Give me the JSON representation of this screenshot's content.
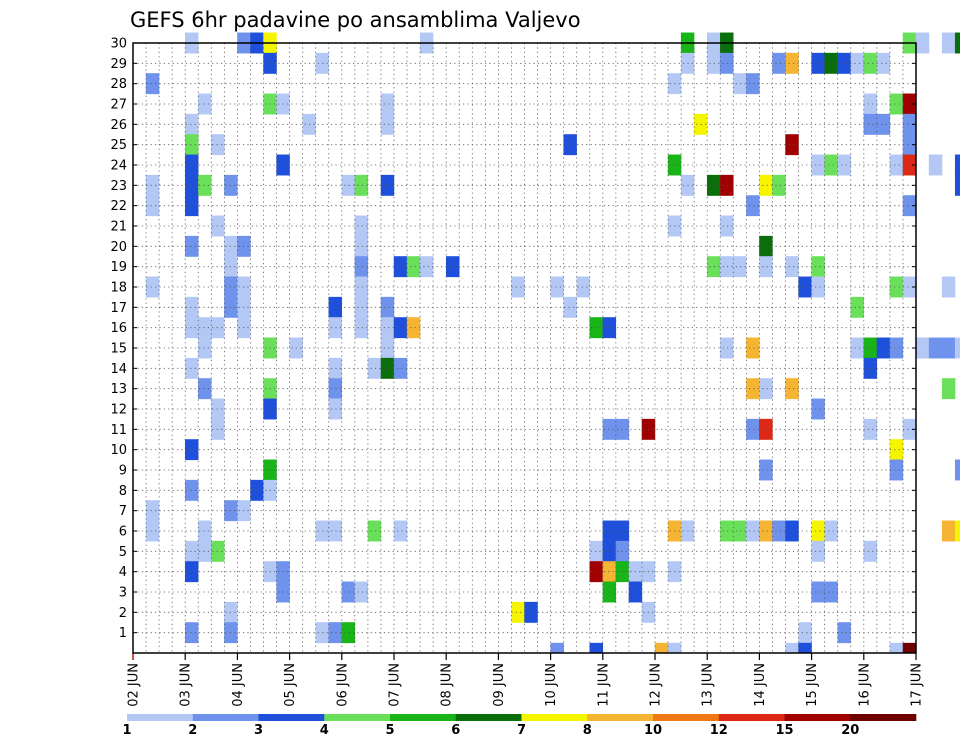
{
  "chart_data": {
    "type": "heatmap",
    "title": "GEFS 6hr padavine po ansamblima Valjevo",
    "xlabel": "",
    "ylabel": "",
    "x_tick_labels": [
      "02 JUN",
      "03 JUN",
      "04 JUN",
      "05 JUN",
      "06 JUN",
      "07 JUN",
      "08 JUN",
      "09 JUN",
      "10 JUN",
      "11 JUN",
      "12 JUN",
      "13 JUN",
      "14 JUN",
      "15 JUN",
      "16 JUN",
      "17 JUN"
    ],
    "y_tick_labels": [
      "1",
      "2",
      "3",
      "4",
      "5",
      "6",
      "7",
      "8",
      "9",
      "10",
      "11",
      "12",
      "13",
      "14",
      "15",
      "16",
      "17",
      "18",
      "19",
      "20",
      "21",
      "22",
      "23",
      "24",
      "25",
      "26",
      "27",
      "28",
      "29",
      "30"
    ],
    "ylim": [
      0,
      30
    ],
    "grid": true,
    "colorbar": {
      "labels": [
        "1",
        "2",
        "3",
        "4",
        "5",
        "6",
        "7",
        "8",
        "10",
        "12",
        "15",
        "20"
      ],
      "colors": [
        "#b4c8f5",
        "#6f93ec",
        "#1e50dc",
        "#6ae05a",
        "#18b418",
        "#0a6e0a",
        "#f5f500",
        "#f5b432",
        "#f07814",
        "#dc2814",
        "#a00000",
        "#6e0000"
      ]
    },
    "cells": [
      [
        3,
        30,
        1
      ],
      [
        4,
        30,
        2
      ],
      [
        4.25,
        30,
        3
      ],
      [
        4.5,
        30,
        7
      ],
      [
        7.5,
        30,
        1
      ],
      [
        12.5,
        30,
        5
      ],
      [
        13,
        30,
        1
      ],
      [
        13.25,
        30,
        6
      ],
      [
        16.75,
        30,
        4
      ],
      [
        17,
        30,
        1
      ],
      [
        17.5,
        30,
        1
      ],
      [
        17.75,
        30,
        6
      ],
      [
        4.5,
        29,
        3
      ],
      [
        5.5,
        29,
        1
      ],
      [
        12.5,
        29,
        1
      ],
      [
        13,
        29,
        1
      ],
      [
        13.25,
        29,
        2
      ],
      [
        14.25,
        29,
        2
      ],
      [
        14.5,
        29,
        8
      ],
      [
        15,
        29,
        3
      ],
      [
        15.25,
        29,
        6
      ],
      [
        15.5,
        29,
        3
      ],
      [
        15.75,
        29,
        1
      ],
      [
        16,
        29,
        4
      ],
      [
        16.25,
        29,
        1
      ],
      [
        2.25,
        28,
        2
      ],
      [
        12.25,
        28,
        1
      ],
      [
        13.5,
        28,
        1
      ],
      [
        13.75,
        28,
        2
      ],
      [
        3.25,
        27,
        1
      ],
      [
        4.5,
        27,
        4
      ],
      [
        4.75,
        27,
        1
      ],
      [
        6.75,
        27,
        1
      ],
      [
        16,
        27,
        1
      ],
      [
        16.5,
        27,
        4
      ],
      [
        16.75,
        27,
        11
      ],
      [
        3,
        26,
        1
      ],
      [
        5.25,
        26,
        1
      ],
      [
        6.75,
        26,
        1
      ],
      [
        12.75,
        26,
        7
      ],
      [
        16,
        26,
        2
      ],
      [
        16.25,
        26,
        2
      ],
      [
        16.75,
        26,
        2
      ],
      [
        3,
        25,
        4
      ],
      [
        3.5,
        25,
        1
      ],
      [
        10.25,
        25,
        3
      ],
      [
        14.5,
        25,
        11
      ],
      [
        16.75,
        25,
        2
      ],
      [
        3,
        24,
        3
      ],
      [
        4.75,
        24,
        3
      ],
      [
        12.25,
        24,
        5
      ],
      [
        15,
        24,
        1
      ],
      [
        15.25,
        24,
        4
      ],
      [
        15.5,
        24,
        1
      ],
      [
        16.5,
        24,
        1
      ],
      [
        16.75,
        24,
        10
      ],
      [
        17.25,
        24,
        1
      ],
      [
        17.75,
        24,
        3
      ],
      [
        2.25,
        23,
        1
      ],
      [
        3,
        23,
        3
      ],
      [
        3.25,
        23,
        4
      ],
      [
        3.75,
        23,
        2
      ],
      [
        6,
        23,
        1
      ],
      [
        6.25,
        23,
        4
      ],
      [
        6.75,
        23,
        3
      ],
      [
        12.5,
        23,
        1
      ],
      [
        13,
        23,
        6
      ],
      [
        13.25,
        23,
        11
      ],
      [
        14,
        23,
        7
      ],
      [
        14.25,
        23,
        4
      ],
      [
        17.75,
        23,
        3
      ],
      [
        2.25,
        22,
        1
      ],
      [
        3,
        22,
        3
      ],
      [
        13.75,
        22,
        2
      ],
      [
        16.75,
        22,
        2
      ],
      [
        3.5,
        21,
        1
      ],
      [
        6.25,
        21,
        1
      ],
      [
        12.25,
        21,
        1
      ],
      [
        13.25,
        21,
        1
      ],
      [
        3,
        20,
        2
      ],
      [
        3.75,
        20,
        1
      ],
      [
        4,
        20,
        2
      ],
      [
        6.25,
        20,
        1
      ],
      [
        14,
        20,
        6
      ],
      [
        3.75,
        19,
        1
      ],
      [
        6.25,
        19,
        2
      ],
      [
        7,
        19,
        3
      ],
      [
        7.25,
        19,
        4
      ],
      [
        7.5,
        19,
        1
      ],
      [
        8,
        19,
        3
      ],
      [
        13,
        19,
        4
      ],
      [
        13.25,
        19,
        1
      ],
      [
        13.5,
        19,
        1
      ],
      [
        14,
        19,
        1
      ],
      [
        14.5,
        19,
        1
      ],
      [
        15,
        19,
        4
      ],
      [
        2.25,
        18,
        1
      ],
      [
        3.75,
        18,
        2
      ],
      [
        4,
        18,
        1
      ],
      [
        6.25,
        18,
        1
      ],
      [
        9.25,
        18,
        1
      ],
      [
        10,
        18,
        1
      ],
      [
        10.5,
        18,
        1
      ],
      [
        14.75,
        18,
        3
      ],
      [
        15,
        18,
        1
      ],
      [
        16.5,
        18,
        4
      ],
      [
        16.75,
        18,
        1
      ],
      [
        17.5,
        18,
        1
      ],
      [
        3,
        17,
        1
      ],
      [
        3.75,
        17,
        2
      ],
      [
        4,
        17,
        1
      ],
      [
        5.75,
        17,
        3
      ],
      [
        6.25,
        17,
        1
      ],
      [
        6.75,
        17,
        2
      ],
      [
        10.25,
        17,
        1
      ],
      [
        15.75,
        17,
        4
      ],
      [
        3,
        16,
        1
      ],
      [
        3.25,
        16,
        1
      ],
      [
        3.5,
        16,
        1
      ],
      [
        4,
        16,
        1
      ],
      [
        5.75,
        16,
        1
      ],
      [
        6.25,
        16,
        1
      ],
      [
        6.75,
        16,
        1
      ],
      [
        7,
        16,
        3
      ],
      [
        7.25,
        16,
        8
      ],
      [
        10.75,
        16,
        5
      ],
      [
        11,
        16,
        3
      ],
      [
        3.25,
        15,
        1
      ],
      [
        4.5,
        15,
        4
      ],
      [
        5,
        15,
        1
      ],
      [
        6.75,
        15,
        1
      ],
      [
        13.25,
        15,
        1
      ],
      [
        13.75,
        15,
        8
      ],
      [
        15.75,
        15,
        1
      ],
      [
        16,
        15,
        5
      ],
      [
        16.25,
        15,
        3
      ],
      [
        16.5,
        15,
        2
      ],
      [
        17,
        15,
        1
      ],
      [
        17.25,
        15,
        2
      ],
      [
        17.5,
        15,
        2
      ],
      [
        17.75,
        15,
        1
      ],
      [
        3,
        14,
        1
      ],
      [
        5.75,
        14,
        1
      ],
      [
        6.5,
        14,
        1
      ],
      [
        6.75,
        14,
        6
      ],
      [
        7,
        14,
        2
      ],
      [
        16,
        14,
        3
      ],
      [
        3.25,
        13,
        2
      ],
      [
        4.5,
        13,
        4
      ],
      [
        5.75,
        13,
        2
      ],
      [
        13.75,
        13,
        8
      ],
      [
        14,
        13,
        1
      ],
      [
        14.5,
        13,
        8
      ],
      [
        17.5,
        13,
        4
      ],
      [
        3.5,
        12,
        1
      ],
      [
        4.5,
        12,
        3
      ],
      [
        5.75,
        12,
        1
      ],
      [
        15,
        12,
        2
      ],
      [
        3.5,
        11,
        1
      ],
      [
        11,
        11,
        2
      ],
      [
        11.25,
        11,
        2
      ],
      [
        11.75,
        11,
        11
      ],
      [
        13.75,
        11,
        2
      ],
      [
        14,
        11,
        10
      ],
      [
        16,
        11,
        1
      ],
      [
        16.75,
        11,
        1
      ],
      [
        3,
        10,
        3
      ],
      [
        16.5,
        10,
        7
      ],
      [
        4.5,
        9,
        5
      ],
      [
        14,
        9,
        2
      ],
      [
        16.5,
        9,
        2
      ],
      [
        17.75,
        9,
        2
      ],
      [
        3,
        8,
        2
      ],
      [
        4.25,
        8,
        3
      ],
      [
        4.5,
        8,
        1
      ],
      [
        2.25,
        7,
        1
      ],
      [
        3.75,
        7,
        2
      ],
      [
        4,
        7,
        1
      ],
      [
        2.25,
        6,
        1
      ],
      [
        3.25,
        6,
        1
      ],
      [
        5.5,
        6,
        1
      ],
      [
        5.75,
        6,
        1
      ],
      [
        6.5,
        6,
        4
      ],
      [
        7,
        6,
        1
      ],
      [
        11,
        6,
        3
      ],
      [
        11.25,
        6,
        3
      ],
      [
        12.25,
        6,
        8
      ],
      [
        12.5,
        6,
        1
      ],
      [
        13.25,
        6,
        4
      ],
      [
        13.5,
        6,
        4
      ],
      [
        13.75,
        6,
        1
      ],
      [
        14,
        6,
        8
      ],
      [
        14.25,
        6,
        2
      ],
      [
        14.5,
        6,
        3
      ],
      [
        15,
        6,
        7
      ],
      [
        15.25,
        6,
        1
      ],
      [
        17.5,
        6,
        8
      ],
      [
        17.75,
        6,
        7
      ],
      [
        3,
        5,
        1
      ],
      [
        3.25,
        5,
        1
      ],
      [
        3.5,
        5,
        4
      ],
      [
        10.75,
        5,
        1
      ],
      [
        11,
        5,
        3
      ],
      [
        11.25,
        5,
        2
      ],
      [
        15,
        5,
        1
      ],
      [
        16,
        5,
        1
      ],
      [
        3,
        4,
        3
      ],
      [
        4.5,
        4,
        1
      ],
      [
        4.75,
        4,
        2
      ],
      [
        10.75,
        4,
        11
      ],
      [
        11,
        4,
        8
      ],
      [
        11.25,
        4,
        5
      ],
      [
        11.5,
        4,
        1
      ],
      [
        11.75,
        4,
        1
      ],
      [
        12.25,
        4,
        1
      ],
      [
        4.75,
        3,
        2
      ],
      [
        6,
        3,
        2
      ],
      [
        6.25,
        3,
        1
      ],
      [
        11,
        3,
        5
      ],
      [
        11.5,
        3,
        3
      ],
      [
        15,
        3,
        2
      ],
      [
        15.25,
        3,
        2
      ],
      [
        3.75,
        2,
        1
      ],
      [
        9.25,
        2,
        7
      ],
      [
        9.5,
        2,
        3
      ],
      [
        11.75,
        2,
        1
      ],
      [
        3,
        1,
        2
      ],
      [
        3.75,
        1,
        2
      ],
      [
        5.5,
        1,
        1
      ],
      [
        5.75,
        1,
        2
      ],
      [
        6,
        1,
        5
      ],
      [
        14.75,
        1,
        1
      ],
      [
        15.5,
        1,
        2
      ]
    ],
    "edge_cells": [
      [
        10,
        2
      ],
      [
        10.75,
        3
      ],
      [
        12,
        8
      ],
      [
        12.25,
        1
      ],
      [
        14.5,
        1
      ],
      [
        14.75,
        3
      ],
      [
        16.5,
        1
      ],
      [
        16.75,
        12
      ]
    ]
  }
}
